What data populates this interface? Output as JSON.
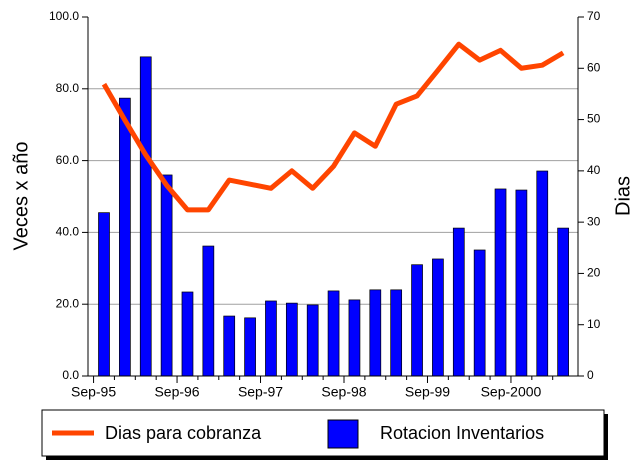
{
  "chart_data": {
    "type": "bar-line",
    "y_label": "Veces x año",
    "y2_label": "Dias",
    "categories": [
      "Sep-95",
      null,
      null,
      null,
      "Sep-96",
      null,
      null,
      null,
      "Sep-97",
      null,
      null,
      null,
      "Sep-98",
      null,
      null,
      null,
      "Sep-99",
      null,
      null,
      null,
      "Sep-2000",
      null,
      null
    ],
    "series": [
      {
        "name": "Dias para cobranza",
        "type": "line",
        "axis": "y2",
        "color": "#ff4500",
        "values": [
          56.9,
          49.9,
          43.1,
          37.2,
          32.4,
          32.4,
          38.2,
          37.4,
          36.6,
          40,
          36.6,
          40.9,
          47.4,
          44.8,
          53,
          54.6,
          59.6,
          64.7,
          61.6,
          63.5,
          60,
          60.6,
          63
        ]
      },
      {
        "name": "Rotacion Inventarios",
        "type": "bar",
        "axis": "y",
        "color": "#0000ff",
        "values": [
          45.5,
          77.4,
          88.9,
          56,
          23.4,
          36.2,
          16.7,
          16.2,
          20.9,
          20.3,
          19.8,
          23.7,
          21.2,
          24,
          24,
          31,
          32.6,
          41.2,
          35.1,
          52.1,
          51.8,
          57.1,
          41.2
        ]
      }
    ],
    "ylim": [
      0,
      100
    ],
    "yticks": [
      {
        "value": 0,
        "label": "0.0"
      },
      {
        "value": 20,
        "label": "20.0"
      },
      {
        "value": 40,
        "label": "40.0"
      },
      {
        "value": 60,
        "label": "60.0"
      },
      {
        "value": 80,
        "label": "80.0"
      },
      {
        "value": 100,
        "label": "100.0"
      }
    ],
    "y2lim": [
      0,
      70
    ],
    "y2ticks": [
      0,
      10,
      20,
      30,
      40,
      50,
      60,
      70
    ],
    "grid": true
  }
}
